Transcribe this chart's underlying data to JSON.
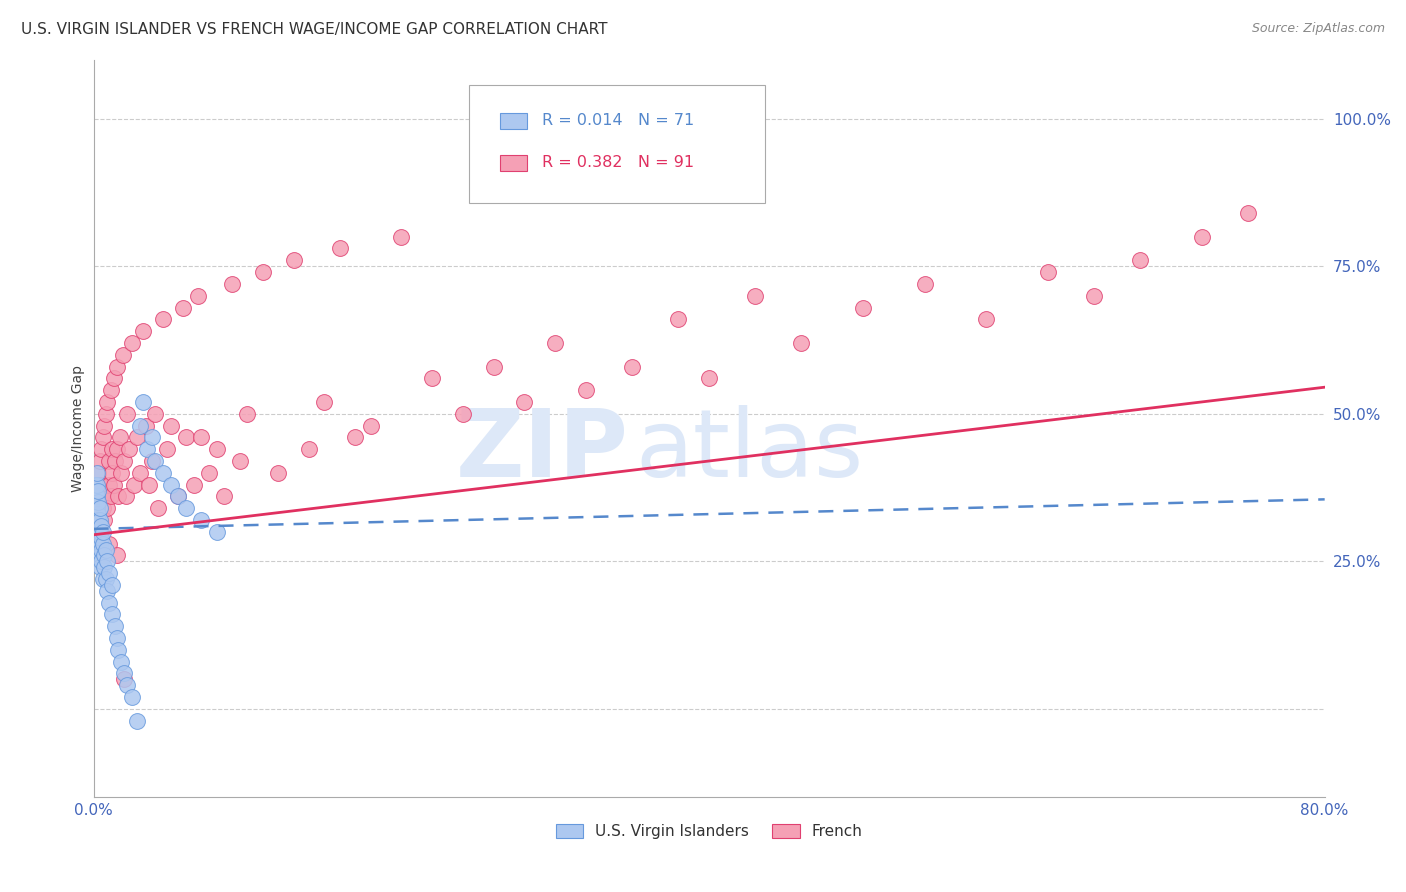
{
  "title": "U.S. VIRGIN ISLANDER VS FRENCH WAGE/INCOME GAP CORRELATION CHART",
  "source": "Source: ZipAtlas.com",
  "ylabel": "Wage/Income Gap",
  "xlim": [
    0.0,
    0.8
  ],
  "ylim": [
    -0.15,
    1.1
  ],
  "yticks": [
    0.0,
    0.25,
    0.5,
    0.75,
    1.0
  ],
  "ytick_labels": [
    "",
    "25.0%",
    "50.0%",
    "75.0%",
    "100.0%"
  ],
  "xticks": [
    0.0,
    0.1,
    0.2,
    0.3,
    0.4,
    0.5,
    0.6,
    0.7,
    0.8
  ],
  "xtick_labels": [
    "0.0%",
    "",
    "",
    "",
    "",
    "",
    "",
    "",
    "80.0%"
  ],
  "vi_R": 0.014,
  "vi_N": 71,
  "fr_R": 0.382,
  "fr_N": 91,
  "vi_color": "#adc8f0",
  "vi_edge_color": "#6699dd",
  "fr_color": "#f5a0b5",
  "fr_edge_color": "#e04070",
  "vi_line_color": "#5588cc",
  "fr_line_color": "#e03060",
  "background_color": "#ffffff",
  "grid_color": "#cccccc",
  "title_fontsize": 11,
  "axis_tick_color": "#4466bb",
  "watermark_color": "#dde8f8",
  "vi_x": [
    0.001,
    0.001,
    0.001,
    0.001,
    0.001,
    0.001,
    0.001,
    0.001,
    0.001,
    0.001,
    0.002,
    0.002,
    0.002,
    0.002,
    0.002,
    0.002,
    0.002,
    0.002,
    0.002,
    0.002,
    0.002,
    0.003,
    0.003,
    0.003,
    0.003,
    0.003,
    0.003,
    0.003,
    0.003,
    0.004,
    0.004,
    0.004,
    0.004,
    0.004,
    0.004,
    0.005,
    0.005,
    0.005,
    0.005,
    0.006,
    0.006,
    0.006,
    0.007,
    0.007,
    0.008,
    0.008,
    0.009,
    0.009,
    0.01,
    0.01,
    0.012,
    0.012,
    0.014,
    0.015,
    0.016,
    0.018,
    0.02,
    0.022,
    0.025,
    0.028,
    0.03,
    0.032,
    0.035,
    0.038,
    0.04,
    0.045,
    0.05,
    0.055,
    0.06,
    0.07,
    0.08
  ],
  "vi_y": [
    0.31,
    0.33,
    0.35,
    0.37,
    0.29,
    0.3,
    0.32,
    0.34,
    0.36,
    0.38,
    0.28,
    0.3,
    0.32,
    0.34,
    0.36,
    0.38,
    0.4,
    0.29,
    0.31,
    0.33,
    0.27,
    0.29,
    0.31,
    0.33,
    0.35,
    0.37,
    0.28,
    0.3,
    0.32,
    0.28,
    0.3,
    0.32,
    0.26,
    0.34,
    0.24,
    0.27,
    0.29,
    0.31,
    0.25,
    0.28,
    0.3,
    0.22,
    0.26,
    0.24,
    0.27,
    0.22,
    0.25,
    0.2,
    0.23,
    0.18,
    0.16,
    0.21,
    0.14,
    0.12,
    0.1,
    0.08,
    0.06,
    0.04,
    0.02,
    -0.02,
    0.48,
    0.52,
    0.44,
    0.46,
    0.42,
    0.4,
    0.38,
    0.36,
    0.34,
    0.32,
    0.3
  ],
  "fr_x": [
    0.002,
    0.003,
    0.003,
    0.004,
    0.004,
    0.005,
    0.005,
    0.005,
    0.006,
    0.006,
    0.007,
    0.007,
    0.008,
    0.008,
    0.009,
    0.009,
    0.01,
    0.01,
    0.011,
    0.011,
    0.012,
    0.012,
    0.013,
    0.013,
    0.014,
    0.015,
    0.015,
    0.016,
    0.017,
    0.018,
    0.019,
    0.02,
    0.021,
    0.022,
    0.023,
    0.025,
    0.026,
    0.028,
    0.03,
    0.032,
    0.034,
    0.036,
    0.038,
    0.04,
    0.042,
    0.045,
    0.048,
    0.05,
    0.055,
    0.058,
    0.06,
    0.065,
    0.068,
    0.07,
    0.075,
    0.08,
    0.085,
    0.09,
    0.095,
    0.1,
    0.11,
    0.12,
    0.13,
    0.14,
    0.15,
    0.16,
    0.17,
    0.18,
    0.2,
    0.22,
    0.24,
    0.26,
    0.28,
    0.3,
    0.32,
    0.35,
    0.38,
    0.4,
    0.43,
    0.46,
    0.5,
    0.54,
    0.58,
    0.62,
    0.65,
    0.68,
    0.72,
    0.75,
    0.01,
    0.015,
    0.02
  ],
  "fr_y": [
    0.35,
    0.33,
    0.4,
    0.38,
    0.42,
    0.3,
    0.44,
    0.36,
    0.34,
    0.46,
    0.32,
    0.48,
    0.36,
    0.5,
    0.34,
    0.52,
    0.38,
    0.42,
    0.36,
    0.54,
    0.4,
    0.44,
    0.38,
    0.56,
    0.42,
    0.58,
    0.44,
    0.36,
    0.46,
    0.4,
    0.6,
    0.42,
    0.36,
    0.5,
    0.44,
    0.62,
    0.38,
    0.46,
    0.4,
    0.64,
    0.48,
    0.38,
    0.42,
    0.5,
    0.34,
    0.66,
    0.44,
    0.48,
    0.36,
    0.68,
    0.46,
    0.38,
    0.7,
    0.46,
    0.4,
    0.44,
    0.36,
    0.72,
    0.42,
    0.5,
    0.74,
    0.4,
    0.76,
    0.44,
    0.52,
    0.78,
    0.46,
    0.48,
    0.8,
    0.56,
    0.5,
    0.58,
    0.52,
    0.62,
    0.54,
    0.58,
    0.66,
    0.56,
    0.7,
    0.62,
    0.68,
    0.72,
    0.66,
    0.74,
    0.7,
    0.76,
    0.8,
    0.84,
    0.28,
    0.26,
    0.05
  ],
  "vi_trend_x0": 0.0,
  "vi_trend_y0": 0.305,
  "vi_trend_x1": 0.8,
  "vi_trend_y1": 0.355,
  "fr_trend_x0": 0.0,
  "fr_trend_y0": 0.295,
  "fr_trend_x1": 0.8,
  "fr_trend_y1": 0.545
}
